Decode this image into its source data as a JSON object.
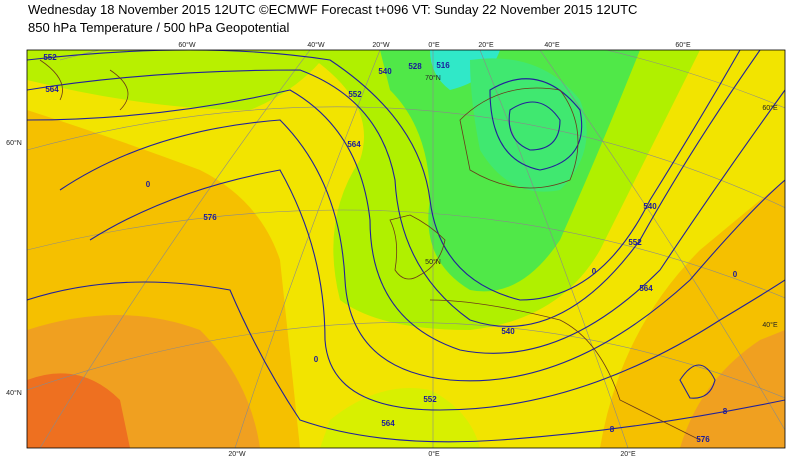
{
  "header": {
    "title": "Wednesday 18 November 2015 12UTC ©ECMWF Forecast t+096 VT: Sunday 22 November 2015 12UTC",
    "subtitle": "850 hPa Temperature / 500 hPa Geopotential"
  },
  "graticule": {
    "top": [
      "60°W",
      "40°W",
      "20°W",
      "0°E",
      "20°E",
      "40°E",
      "60°E"
    ],
    "bottom": [
      "20°W",
      "0°E",
      "20°E"
    ],
    "left": [
      "60°N",
      "40°N"
    ],
    "right": [
      "60°E",
      "40°E"
    ],
    "inner": [
      "70°N",
      "50°N"
    ]
  },
  "contour_labels": [
    "552",
    "564",
    "0",
    "576",
    "0",
    "552",
    "564",
    "540",
    "528",
    "516",
    "540",
    "0",
    "552",
    "564",
    "576",
    "564",
    "552",
    "540",
    "8",
    "8",
    "0"
  ]
}
